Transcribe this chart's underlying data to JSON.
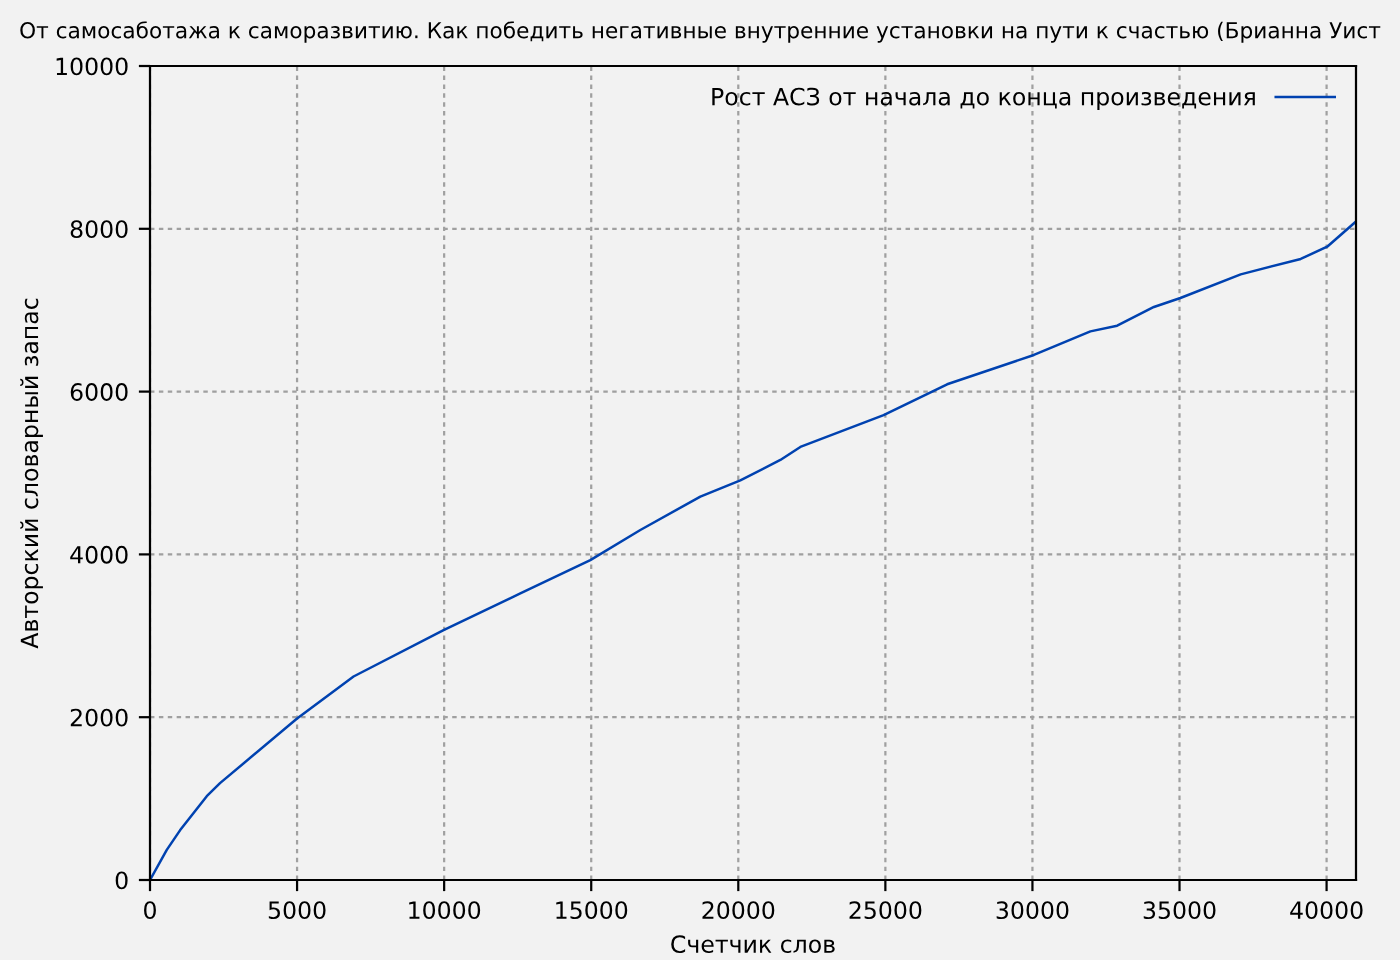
{
  "chart_data": {
    "type": "line",
    "title": "От самосаботажа к саморазвитию. Как победить негативные внутренние установки на пути к счастью (Брианна Уист",
    "xlabel": "Счетчик слов",
    "ylabel": "Авторский словарный запас",
    "x": [
      0,
      570,
      1020,
      1930,
      2380,
      4990,
      6920,
      9980,
      12590,
      14970,
      16670,
      18710,
      20070,
      21430,
      22110,
      24940,
      27100,
      30050,
      31970,
      32880,
      34130,
      35030,
      37080,
      39120,
      40020,
      41000
    ],
    "series": [
      {
        "name": "Рост АСЗ от начала до конца произведения",
        "color": "#0042b0",
        "values": [
          0,
          370,
          610,
          1030,
          1190,
          1980,
          2500,
          3070,
          3520,
          3930,
          4300,
          4710,
          4910,
          5160,
          5320,
          5710,
          6090,
          6450,
          6740,
          6810,
          7040,
          7150,
          7440,
          7630,
          7780,
          8090
        ]
      }
    ],
    "xlim": [
      0,
      41000
    ],
    "ylim": [
      0,
      10000
    ],
    "xticks": [
      0,
      5000,
      10000,
      15000,
      20000,
      25000,
      30000,
      35000,
      40000
    ],
    "yticks": [
      0,
      2000,
      4000,
      6000,
      8000,
      10000
    ],
    "grid": true,
    "legend": "top right",
    "marker": "none",
    "line_style": "solid"
  }
}
